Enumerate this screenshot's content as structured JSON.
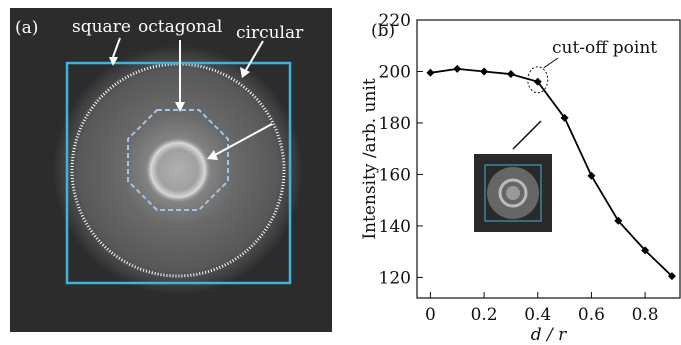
{
  "panel_a": {
    "label": "(a)",
    "annotations": [
      "square",
      "octagonal",
      "circular"
    ],
    "colors": {
      "background": "#2c2c2c",
      "square": "#3fb4d8",
      "octagon": "#9fc4e8",
      "circle_ring": "#ffffff"
    }
  },
  "chart_data": {
    "type": "line",
    "panel_label": "(b)",
    "x": [
      0,
      0.1,
      0.2,
      0.3,
      0.4,
      0.5,
      0.6,
      0.7,
      0.8,
      0.9
    ],
    "series": [
      {
        "values": [
          199.5,
          201,
          200,
          199,
          196,
          182,
          159.5,
          142,
          130.5,
          120.5
        ]
      }
    ],
    "xlabel": "d / r",
    "ylabel": "Intensity /arb. unit",
    "xlim": [
      -0.05,
      0.93
    ],
    "ylim": [
      112,
      220
    ],
    "xticks": [
      0,
      0.2,
      0.4,
      0.6,
      0.8
    ],
    "xtick_labels": [
      "0",
      "0.2",
      "0.4",
      "0.6",
      "0.8"
    ],
    "yticks": [
      120,
      140,
      160,
      180,
      200,
      220
    ],
    "ytick_labels": [
      "120",
      "140",
      "160",
      "180",
      "200",
      "220"
    ],
    "annotation": "cut-off point",
    "grid": false,
    "line_color": "#000000"
  }
}
